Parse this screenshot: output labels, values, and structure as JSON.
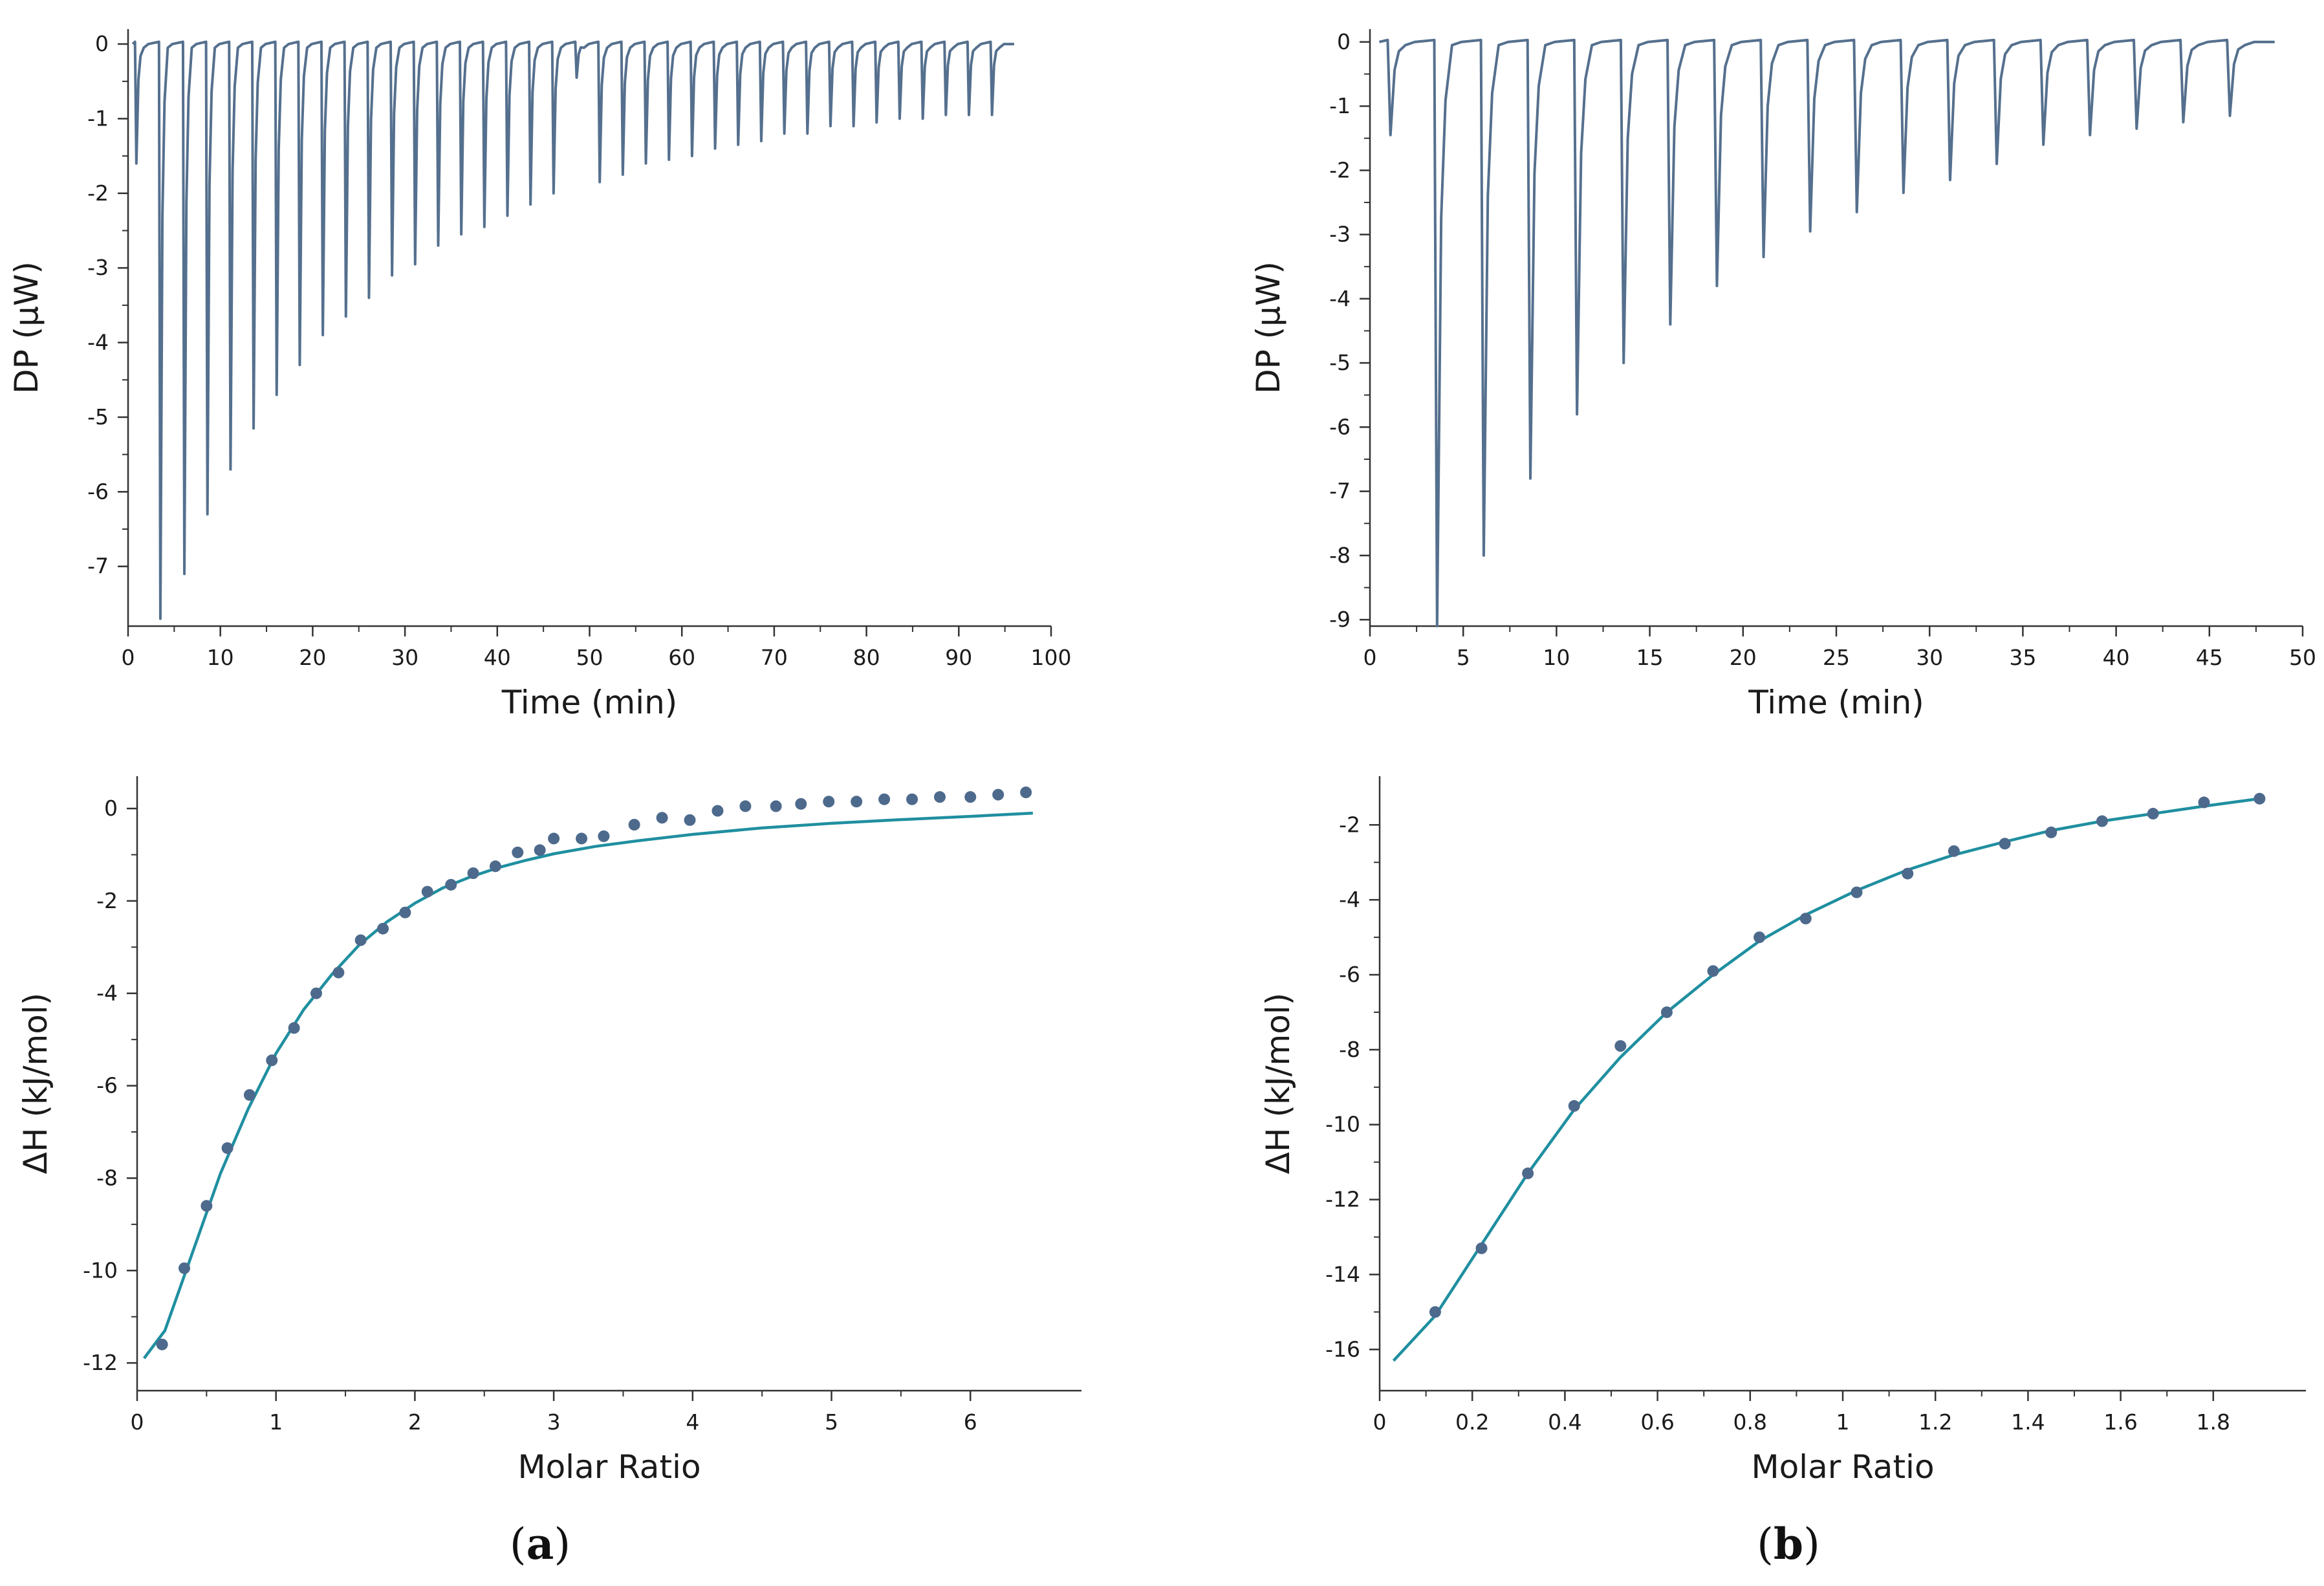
{
  "colors": {
    "thermogram": "#55708e",
    "fit": "#1f8fa0",
    "points": "#4d6a8c",
    "axis": "#333333"
  },
  "panels": [
    {
      "label": "a",
      "label_open": "(",
      "label_close": ")"
    },
    {
      "label": "b",
      "label_open": "(",
      "label_close": ")"
    }
  ],
  "chart_data": [
    {
      "id": "a-thermogram",
      "type": "line",
      "title": "",
      "xlabel": "Time (min)",
      "ylabel": "DP (µW)",
      "xlim": [
        0,
        100
      ],
      "ylim": [
        -7.8,
        0.2
      ],
      "xticks": [
        0,
        10,
        20,
        30,
        40,
        50,
        60,
        70,
        80,
        90,
        100
      ],
      "yticks": [
        0,
        -1,
        -2,
        -3,
        -4,
        -5,
        -6,
        -7
      ],
      "baseline": 0,
      "end_time": 96,
      "injections": [
        {
          "t": 1.0,
          "peak": -1.6
        },
        {
          "t": 3.6,
          "peak": -7.7
        },
        {
          "t": 6.2,
          "peak": -7.1
        },
        {
          "t": 8.7,
          "peak": -6.3
        },
        {
          "t": 11.2,
          "peak": -5.7
        },
        {
          "t": 13.7,
          "peak": -5.15
        },
        {
          "t": 16.2,
          "peak": -4.7
        },
        {
          "t": 18.7,
          "peak": -4.3
        },
        {
          "t": 21.2,
          "peak": -3.9
        },
        {
          "t": 23.7,
          "peak": -3.65
        },
        {
          "t": 26.2,
          "peak": -3.4
        },
        {
          "t": 28.7,
          "peak": -3.1
        },
        {
          "t": 31.2,
          "peak": -2.95
        },
        {
          "t": 33.7,
          "peak": -2.7
        },
        {
          "t": 36.2,
          "peak": -2.55
        },
        {
          "t": 38.7,
          "peak": -2.45
        },
        {
          "t": 41.2,
          "peak": -2.3
        },
        {
          "t": 43.7,
          "peak": -2.15
        },
        {
          "t": 46.2,
          "peak": -2.0
        },
        {
          "t": 48.7,
          "peak": -0.45
        },
        {
          "t": 51.2,
          "peak": -1.85
        },
        {
          "t": 53.7,
          "peak": -1.75
        },
        {
          "t": 56.2,
          "peak": -1.6
        },
        {
          "t": 58.7,
          "peak": -1.55
        },
        {
          "t": 61.2,
          "peak": -1.5
        },
        {
          "t": 63.7,
          "peak": -1.4
        },
        {
          "t": 66.2,
          "peak": -1.35
        },
        {
          "t": 68.7,
          "peak": -1.3
        },
        {
          "t": 71.2,
          "peak": -1.2
        },
        {
          "t": 73.7,
          "peak": -1.2
        },
        {
          "t": 76.2,
          "peak": -1.1
        },
        {
          "t": 78.7,
          "peak": -1.1
        },
        {
          "t": 81.2,
          "peak": -1.05
        },
        {
          "t": 83.7,
          "peak": -1.0
        },
        {
          "t": 86.2,
          "peak": -1.0
        },
        {
          "t": 88.7,
          "peak": -0.95
        },
        {
          "t": 91.2,
          "peak": -0.95
        },
        {
          "t": 93.7,
          "peak": -0.95
        }
      ]
    },
    {
      "id": "b-thermogram",
      "type": "line",
      "title": "",
      "xlabel": "Time (min)",
      "ylabel": "DP (µW)",
      "xlim": [
        0,
        50
      ],
      "ylim": [
        -9.1,
        0.2
      ],
      "xticks": [
        0,
        5,
        10,
        15,
        20,
        25,
        30,
        35,
        40,
        45,
        50
      ],
      "yticks": [
        0,
        -1,
        -2,
        -3,
        -4,
        -5,
        -6,
        -7,
        -8,
        -9
      ],
      "baseline": 0,
      "end_time": 48.5,
      "injections": [
        {
          "t": 1.2,
          "peak": -1.45
        },
        {
          "t": 3.7,
          "peak": -9.1
        },
        {
          "t": 6.2,
          "peak": -8.0
        },
        {
          "t": 8.7,
          "peak": -6.8
        },
        {
          "t": 11.2,
          "peak": -5.8
        },
        {
          "t": 13.7,
          "peak": -5.0
        },
        {
          "t": 16.2,
          "peak": -4.4
        },
        {
          "t": 18.7,
          "peak": -3.8
        },
        {
          "t": 21.2,
          "peak": -3.35
        },
        {
          "t": 23.7,
          "peak": -2.95
        },
        {
          "t": 26.2,
          "peak": -2.65
        },
        {
          "t": 28.7,
          "peak": -2.35
        },
        {
          "t": 31.2,
          "peak": -2.15
        },
        {
          "t": 33.7,
          "peak": -1.9
        },
        {
          "t": 36.2,
          "peak": -1.6
        },
        {
          "t": 38.7,
          "peak": -1.45
        },
        {
          "t": 41.2,
          "peak": -1.35
        },
        {
          "t": 43.7,
          "peak": -1.25
        },
        {
          "t": 46.2,
          "peak": -1.15
        }
      ]
    },
    {
      "id": "a-isotherm",
      "type": "scatter",
      "title": "",
      "xlabel": "Molar Ratio",
      "ylabel": "ΔH (kJ/mol)",
      "xlim": [
        0,
        6.8
      ],
      "ylim": [
        -12.6,
        0.7
      ],
      "xticks": [
        0,
        1,
        2,
        3,
        4,
        5,
        6
      ],
      "yticks": [
        0,
        -2,
        -4,
        -6,
        -8,
        -10,
        -12
      ],
      "series": [
        {
          "name": "data",
          "x": [
            0.18,
            0.34,
            0.5,
            0.65,
            0.81,
            0.97,
            1.13,
            1.29,
            1.45,
            1.61,
            1.77,
            1.93,
            2.09,
            2.26,
            2.42,
            2.58,
            2.74,
            2.9,
            3.0,
            3.2,
            3.36,
            3.58,
            3.78,
            3.98,
            4.18,
            4.38,
            4.6,
            4.78,
            4.98,
            5.18,
            5.38,
            5.58,
            5.78,
            6.0,
            6.2,
            6.4
          ],
          "y": [
            -11.6,
            -9.95,
            -8.6,
            -7.35,
            -6.2,
            -5.45,
            -4.75,
            -4.0,
            -3.55,
            -2.85,
            -2.6,
            -2.25,
            -1.8,
            -1.65,
            -1.4,
            -1.25,
            -0.95,
            -0.9,
            -0.65,
            -0.65,
            -0.6,
            -0.35,
            -0.2,
            -0.25,
            -0.05,
            0.05,
            0.05,
            0.1,
            0.15,
            0.15,
            0.2,
            0.2,
            0.25,
            0.25,
            0.3,
            0.35
          ]
        },
        {
          "name": "fit",
          "x": [
            0.05,
            0.2,
            0.4,
            0.6,
            0.8,
            1.0,
            1.2,
            1.4,
            1.6,
            1.8,
            2.0,
            2.2,
            2.4,
            2.6,
            2.8,
            3.0,
            3.3,
            3.6,
            4.0,
            4.5,
            5.0,
            5.5,
            6.0,
            6.45
          ],
          "y": [
            -11.9,
            -11.3,
            -9.6,
            -7.9,
            -6.5,
            -5.3,
            -4.35,
            -3.6,
            -2.95,
            -2.45,
            -2.05,
            -1.72,
            -1.48,
            -1.28,
            -1.12,
            -0.98,
            -0.82,
            -0.7,
            -0.56,
            -0.42,
            -0.32,
            -0.24,
            -0.17,
            -0.1
          ]
        }
      ]
    },
    {
      "id": "b-isotherm",
      "type": "scatter",
      "title": "",
      "xlabel": "Molar Ratio",
      "ylabel": "ΔH (kJ/mol)",
      "xlim": [
        0,
        2.0
      ],
      "ylim": [
        -17.1,
        -0.7
      ],
      "xticks": [
        0,
        0.2,
        0.4,
        0.6,
        0.8,
        1,
        1.2,
        1.4,
        1.6,
        1.8
      ],
      "yticks": [
        -2,
        -4,
        -6,
        -8,
        -10,
        -12,
        -14,
        -16
      ],
      "series": [
        {
          "name": "data",
          "x": [
            0.12,
            0.22,
            0.32,
            0.42,
            0.52,
            0.62,
            0.72,
            0.82,
            0.92,
            1.03,
            1.14,
            1.24,
            1.35,
            1.45,
            1.56,
            1.67,
            1.78,
            1.9
          ],
          "y": [
            -15.0,
            -13.3,
            -11.3,
            -9.5,
            -7.9,
            -7.0,
            -5.9,
            -5.0,
            -4.5,
            -3.8,
            -3.3,
            -2.7,
            -2.5,
            -2.2,
            -1.9,
            -1.7,
            -1.4,
            -1.3
          ]
        },
        {
          "name": "fit",
          "x": [
            0.03,
            0.12,
            0.22,
            0.32,
            0.42,
            0.52,
            0.62,
            0.72,
            0.82,
            0.92,
            1.03,
            1.14,
            1.24,
            1.35,
            1.45,
            1.56,
            1.67,
            1.78,
            1.9
          ],
          "y": [
            -16.3,
            -15.1,
            -13.2,
            -11.3,
            -9.6,
            -8.2,
            -7.0,
            -6.0,
            -5.1,
            -4.4,
            -3.75,
            -3.2,
            -2.8,
            -2.45,
            -2.15,
            -1.9,
            -1.7,
            -1.5,
            -1.3
          ]
        }
      ]
    }
  ]
}
